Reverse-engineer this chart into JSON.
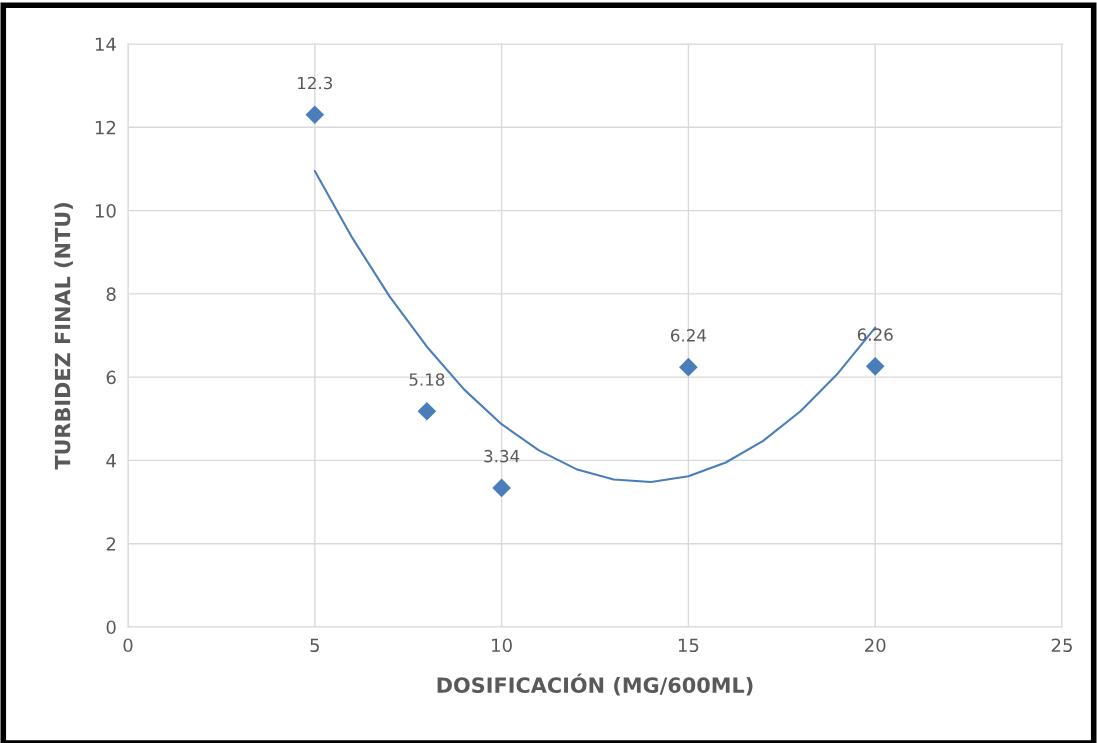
{
  "chart_data": {
    "type": "scatter",
    "xlabel": "DOSIFICACIÓN (MG/600ML)",
    "ylabel": "TURBIDEZ FINAL (NTU)",
    "xlim": [
      0,
      25
    ],
    "xticks": [
      0,
      5,
      10,
      15,
      20,
      25
    ],
    "ylim": [
      0,
      14
    ],
    "yticks": [
      0,
      2,
      4,
      6,
      8,
      10,
      12,
      14
    ],
    "grid": true,
    "legend": false,
    "series": [
      {
        "color": "#4a7ebb",
        "marker": "diamond",
        "x": [
          5,
          8,
          10,
          15,
          20
        ],
        "values": [
          12.3,
          5.18,
          3.34,
          6.24,
          6.26
        ],
        "value_labels": [
          "12.3",
          "5.18",
          "3.34",
          "6.24",
          "6.26"
        ]
      },
      {
        "type": "line",
        "color": "#4a7ebb",
        "marker": "none",
        "line_style": "solid",
        "x": [
          5,
          6,
          7,
          8,
          9,
          10,
          11,
          12,
          13,
          14,
          15,
          16,
          17,
          18,
          19,
          20
        ],
        "values": [
          10.95,
          9.35,
          7.94,
          6.73,
          5.7,
          4.87,
          4.24,
          3.79,
          3.54,
          3.48,
          3.62,
          3.95,
          4.47,
          5.18,
          6.09,
          7.19
        ]
      }
    ]
  }
}
